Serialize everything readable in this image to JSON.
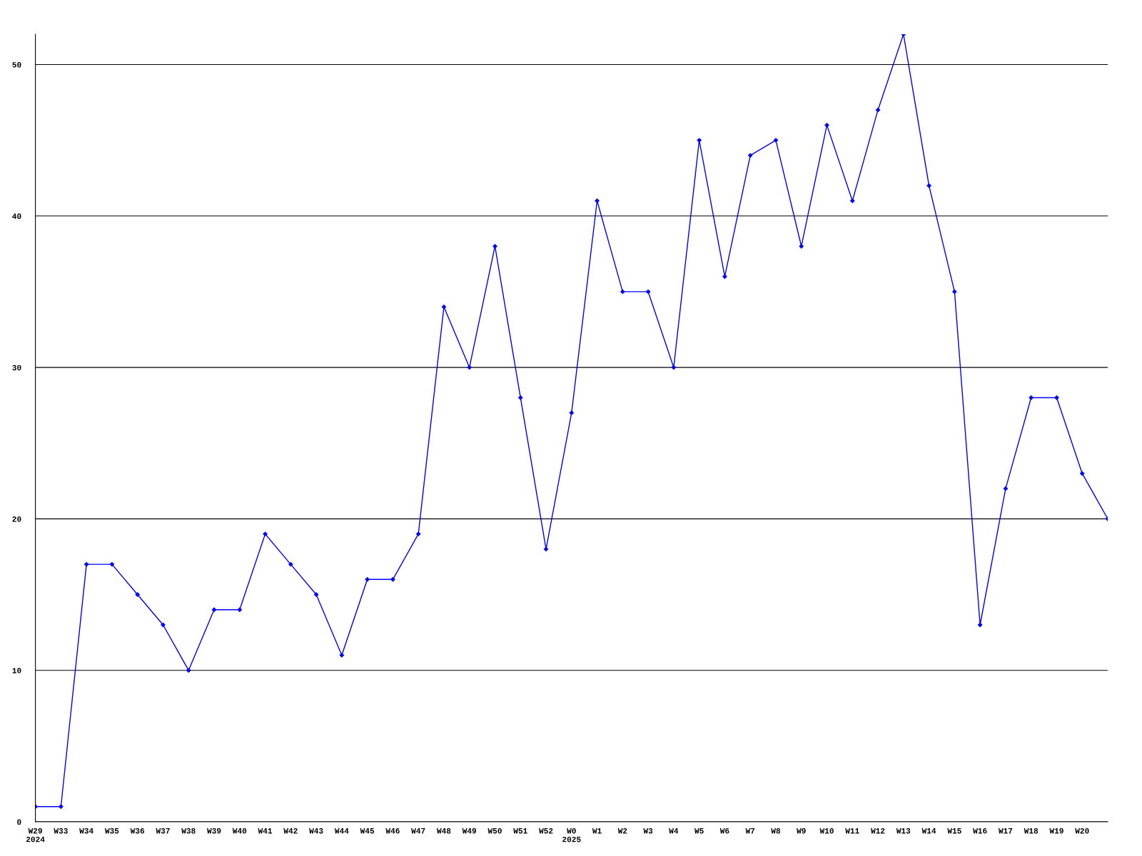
{
  "chart_data": {
    "type": "line",
    "categories": [
      "W29\n2024",
      "W33",
      "W34",
      "W35",
      "W36",
      "W37",
      "W38",
      "W39",
      "W40",
      "W41",
      "W42",
      "W43",
      "W44",
      "W45",
      "W46",
      "W47",
      "W48",
      "W49",
      "W50",
      "W51",
      "W52",
      "W0\n2025",
      "W1",
      "W2",
      "W3",
      "W4",
      "W5",
      "W6",
      "W7",
      "W8",
      "W9",
      "W10",
      "W11",
      "W12",
      "W13",
      "W14",
      "W15",
      "W16",
      "W17",
      "W18",
      "W19",
      "W20",
      null
    ],
    "series": [
      {
        "color": "#0000ff",
        "values": [
          1,
          1,
          17,
          17,
          15,
          13,
          10,
          14,
          14,
          19,
          17,
          15,
          11,
          16,
          16,
          19,
          34,
          30,
          38,
          28,
          18,
          27,
          41,
          35,
          35,
          30,
          45,
          36,
          44,
          45,
          38,
          46,
          41,
          47,
          52,
          42,
          35,
          13,
          22,
          28,
          28,
          23,
          20
        ]
      }
    ],
    "ylim": [
      0,
      52
    ],
    "yticks": [
      0,
      10,
      20,
      30,
      40,
      50
    ],
    "grid": "y",
    "marker": "diamond",
    "line_style": "solid",
    "legend": false
  }
}
